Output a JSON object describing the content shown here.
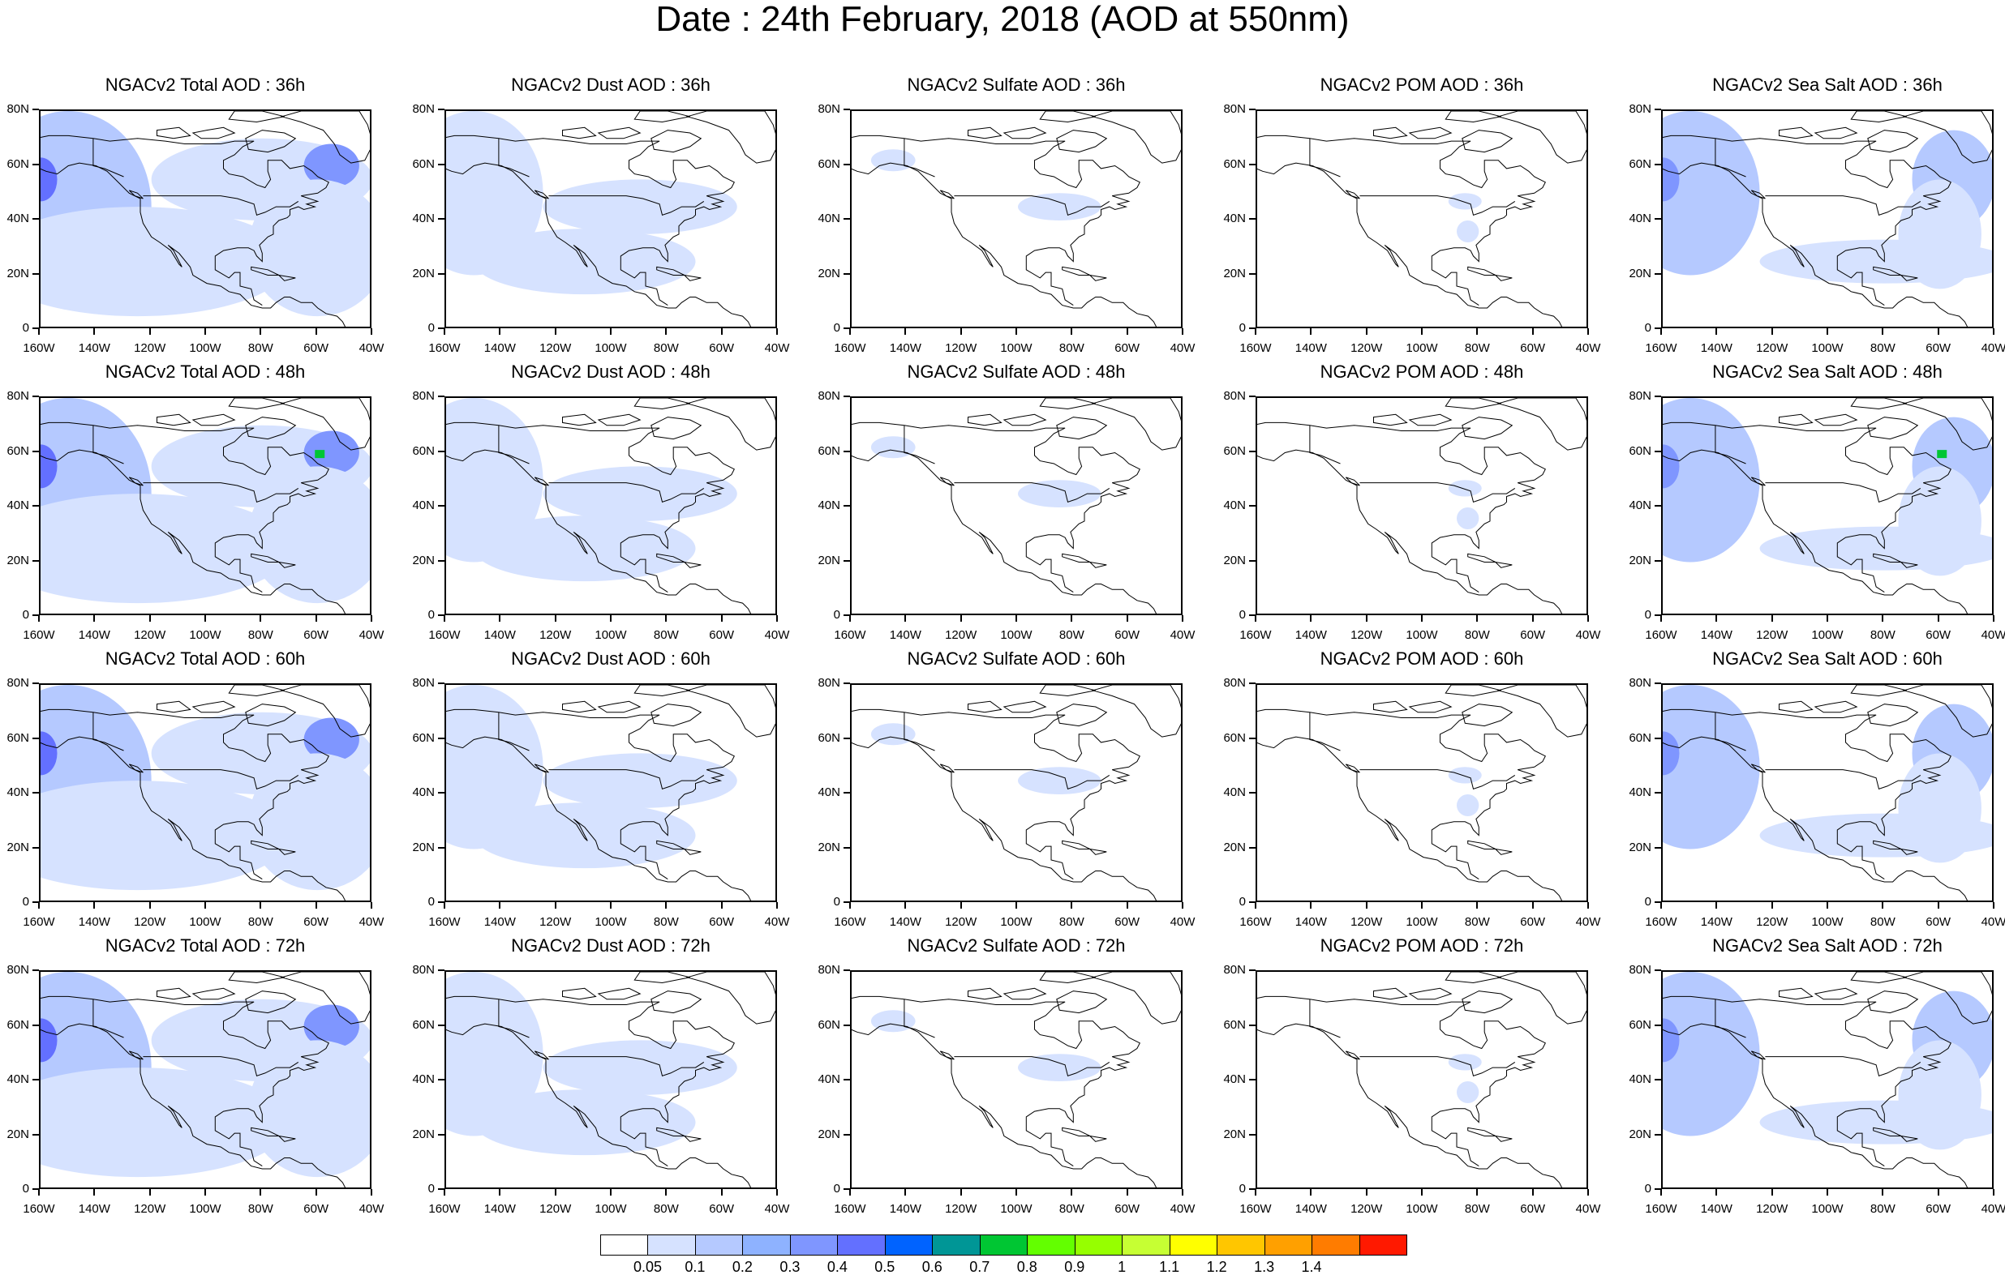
{
  "title": "Date : 24th February, 2018 (AOD at 550nm)",
  "panels": [
    {
      "title": "NGACv2 Total AOD : 36h",
      "field": "total"
    },
    {
      "title": "NGACv2 Dust AOD : 36h",
      "field": "dust"
    },
    {
      "title": "NGACv2 Sulfate AOD : 36h",
      "field": "sulfate"
    },
    {
      "title": "NGACv2 POM AOD : 36h",
      "field": "pom"
    },
    {
      "title": "NGACv2 Sea Salt AOD : 36h",
      "field": "seasalt"
    },
    {
      "title": "NGACv2 Total AOD : 48h",
      "field": "total"
    },
    {
      "title": "NGACv2 Dust AOD : 48h",
      "field": "dust"
    },
    {
      "title": "NGACv2 Sulfate AOD : 48h",
      "field": "sulfate"
    },
    {
      "title": "NGACv2 POM AOD : 48h",
      "field": "pom"
    },
    {
      "title": "NGACv2 Sea Salt AOD : 48h",
      "field": "seasalt"
    },
    {
      "title": "NGACv2 Total AOD : 60h",
      "field": "total"
    },
    {
      "title": "NGACv2 Dust AOD : 60h",
      "field": "dust"
    },
    {
      "title": "NGACv2 Sulfate AOD : 60h",
      "field": "sulfate"
    },
    {
      "title": "NGACv2 POM AOD : 60h",
      "field": "pom"
    },
    {
      "title": "NGACv2 Sea Salt AOD : 60h",
      "field": "seasalt"
    },
    {
      "title": "NGACv2 Total AOD : 72h",
      "field": "total"
    },
    {
      "title": "NGACv2 Dust AOD : 72h",
      "field": "dust"
    },
    {
      "title": "NGACv2 Sulfate AOD : 72h",
      "field": "sulfate"
    },
    {
      "title": "NGACv2 POM AOD : 72h",
      "field": "pom"
    },
    {
      "title": "NGACv2 Sea Salt  AOD : 72h",
      "field": "seasalt"
    }
  ],
  "lat_labels": [
    "80N",
    "60N",
    "40N",
    "20N",
    "0"
  ],
  "lon_labels": [
    "160W",
    "140W",
    "120W",
    "100W",
    "80W",
    "60W",
    "40W"
  ],
  "colorbar": {
    "colors": [
      "#ffffff",
      "#d6e2ff",
      "#b5c9ff",
      "#8eb2ff",
      "#7f96ff",
      "#6370ff",
      "#0063ff",
      "#009696",
      "#00c633",
      "#63ff00",
      "#96ff00",
      "#c6ff33",
      "#ffff00",
      "#ffc600",
      "#ffa000",
      "#ff7c00",
      "#ff1900"
    ],
    "labels": [
      "0.05",
      "0.1",
      "0.2",
      "0.3",
      "0.4",
      "0.5",
      "0.6",
      "0.7",
      "0.8",
      "0.9",
      "1",
      "1.1",
      "1.2",
      "1.3",
      "1.4"
    ]
  }
}
